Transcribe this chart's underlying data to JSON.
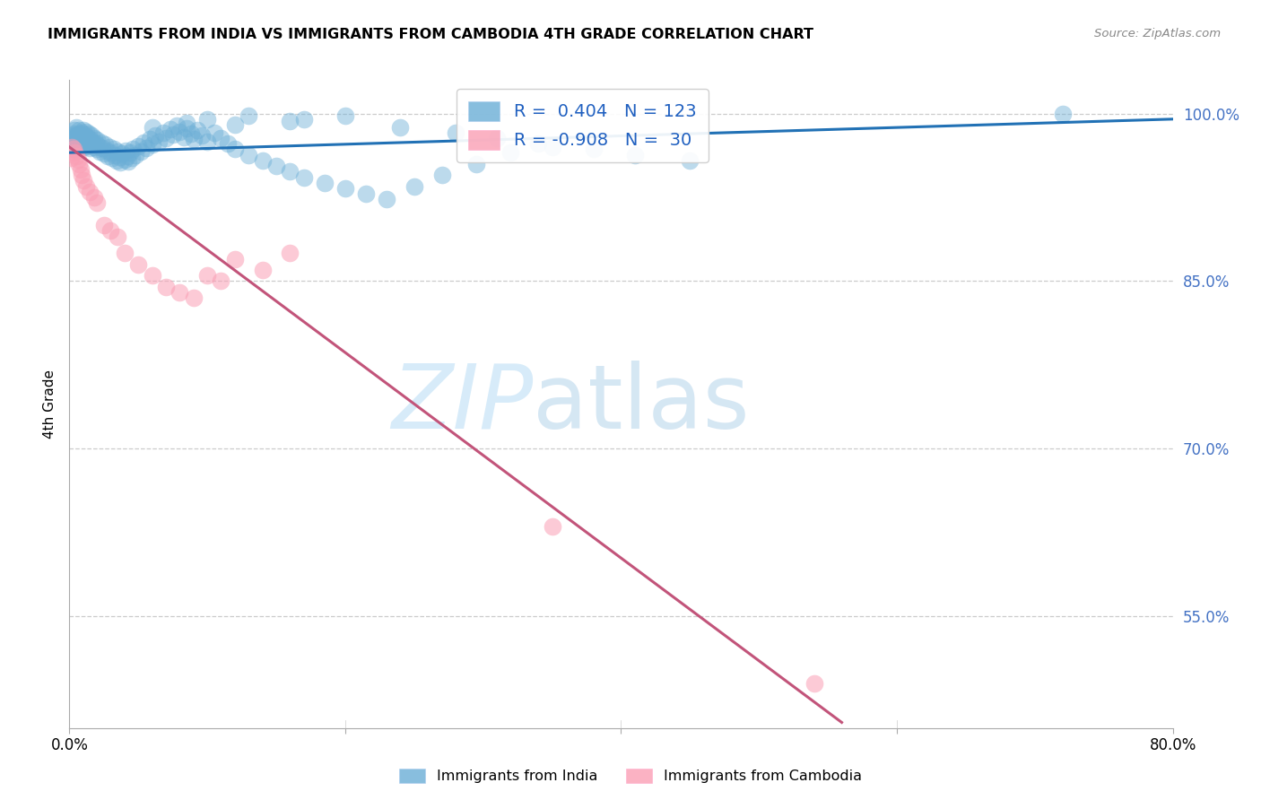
{
  "title": "IMMIGRANTS FROM INDIA VS IMMIGRANTS FROM CAMBODIA 4TH GRADE CORRELATION CHART",
  "source": "Source: ZipAtlas.com",
  "ylabel": "4th Grade",
  "legend_india": "Immigrants from India",
  "legend_cambodia": "Immigrants from Cambodia",
  "R_india": 0.404,
  "N_india": 123,
  "R_cambodia": -0.908,
  "N_cambodia": 30,
  "xlim": [
    0.0,
    0.8
  ],
  "ylim": [
    0.45,
    1.03
  ],
  "yticks": [
    0.55,
    0.7,
    0.85,
    1.0
  ],
  "ytick_labels": [
    "55.0%",
    "70.0%",
    "85.0%",
    "100.0%"
  ],
  "xticks": [
    0.0,
    0.2,
    0.4,
    0.6,
    0.8
  ],
  "xtick_labels": [
    "0.0%",
    "",
    "",
    "",
    "80.0%"
  ],
  "color_india": "#6baed6",
  "color_india_line": "#2171b5",
  "color_cambodia": "#fa9fb5",
  "color_cambodia_line": "#c2547a",
  "watermark_zip": "ZIP",
  "watermark_atlas": "atlas",
  "india_points_x": [
    0.001,
    0.002,
    0.002,
    0.003,
    0.003,
    0.003,
    0.004,
    0.004,
    0.004,
    0.005,
    0.005,
    0.005,
    0.006,
    0.006,
    0.007,
    0.007,
    0.007,
    0.008,
    0.008,
    0.009,
    0.009,
    0.01,
    0.01,
    0.01,
    0.011,
    0.011,
    0.012,
    0.012,
    0.013,
    0.013,
    0.014,
    0.014,
    0.015,
    0.015,
    0.016,
    0.016,
    0.017,
    0.018,
    0.018,
    0.019,
    0.02,
    0.02,
    0.021,
    0.022,
    0.023,
    0.024,
    0.025,
    0.026,
    0.027,
    0.028,
    0.029,
    0.03,
    0.031,
    0.032,
    0.033,
    0.034,
    0.035,
    0.036,
    0.037,
    0.038,
    0.04,
    0.041,
    0.042,
    0.043,
    0.044,
    0.045,
    0.046,
    0.048,
    0.05,
    0.052,
    0.054,
    0.056,
    0.058,
    0.06,
    0.062,
    0.065,
    0.068,
    0.07,
    0.073,
    0.075,
    0.078,
    0.08,
    0.083,
    0.085,
    0.088,
    0.09,
    0.093,
    0.096,
    0.1,
    0.105,
    0.11,
    0.115,
    0.12,
    0.13,
    0.14,
    0.15,
    0.16,
    0.17,
    0.185,
    0.2,
    0.215,
    0.23,
    0.25,
    0.27,
    0.295,
    0.32,
    0.35,
    0.12,
    0.17,
    0.2,
    0.06,
    0.085,
    0.1,
    0.13,
    0.16,
    0.24,
    0.28,
    0.31,
    0.34,
    0.38,
    0.41,
    0.45,
    0.72
  ],
  "india_points_y": [
    0.97,
    0.975,
    0.98,
    0.968,
    0.975,
    0.982,
    0.97,
    0.978,
    0.985,
    0.972,
    0.98,
    0.988,
    0.975,
    0.982,
    0.97,
    0.978,
    0.985,
    0.972,
    0.98,
    0.975,
    0.983,
    0.97,
    0.978,
    0.985,
    0.973,
    0.981,
    0.976,
    0.984,
    0.971,
    0.979,
    0.974,
    0.982,
    0.969,
    0.977,
    0.972,
    0.98,
    0.975,
    0.97,
    0.978,
    0.973,
    0.968,
    0.976,
    0.971,
    0.966,
    0.974,
    0.969,
    0.964,
    0.972,
    0.967,
    0.962,
    0.97,
    0.965,
    0.96,
    0.968,
    0.963,
    0.958,
    0.966,
    0.961,
    0.956,
    0.964,
    0.959,
    0.967,
    0.962,
    0.957,
    0.965,
    0.96,
    0.968,
    0.963,
    0.971,
    0.966,
    0.974,
    0.969,
    0.977,
    0.972,
    0.98,
    0.975,
    0.983,
    0.978,
    0.986,
    0.981,
    0.989,
    0.984,
    0.979,
    0.987,
    0.982,
    0.977,
    0.985,
    0.98,
    0.975,
    0.983,
    0.978,
    0.973,
    0.968,
    0.963,
    0.958,
    0.953,
    0.948,
    0.943,
    0.938,
    0.933,
    0.928,
    0.923,
    0.935,
    0.945,
    0.955,
    0.965,
    0.97,
    0.99,
    0.995,
    0.998,
    0.988,
    0.992,
    0.995,
    0.998,
    0.993,
    0.988,
    0.983,
    0.978,
    0.973,
    0.968,
    0.963,
    0.958,
    1.0
  ],
  "cambodia_points_x": [
    0.001,
    0.002,
    0.003,
    0.004,
    0.005,
    0.006,
    0.007,
    0.008,
    0.009,
    0.01,
    0.012,
    0.015,
    0.018,
    0.02,
    0.025,
    0.03,
    0.035,
    0.04,
    0.05,
    0.06,
    0.07,
    0.08,
    0.09,
    0.1,
    0.11,
    0.12,
    0.14,
    0.16,
    0.35,
    0.54
  ],
  "cambodia_points_y": [
    0.96,
    0.97,
    0.968,
    0.965,
    0.962,
    0.959,
    0.955,
    0.95,
    0.945,
    0.94,
    0.935,
    0.93,
    0.925,
    0.92,
    0.9,
    0.895,
    0.89,
    0.875,
    0.865,
    0.855,
    0.845,
    0.84,
    0.835,
    0.855,
    0.85,
    0.87,
    0.86,
    0.875,
    0.63,
    0.49
  ],
  "india_line_x": [
    0.0,
    0.8
  ],
  "india_line_y": [
    0.965,
    0.995
  ],
  "cambodia_line_x": [
    0.0,
    0.56
  ],
  "cambodia_line_y": [
    0.97,
    0.455
  ]
}
